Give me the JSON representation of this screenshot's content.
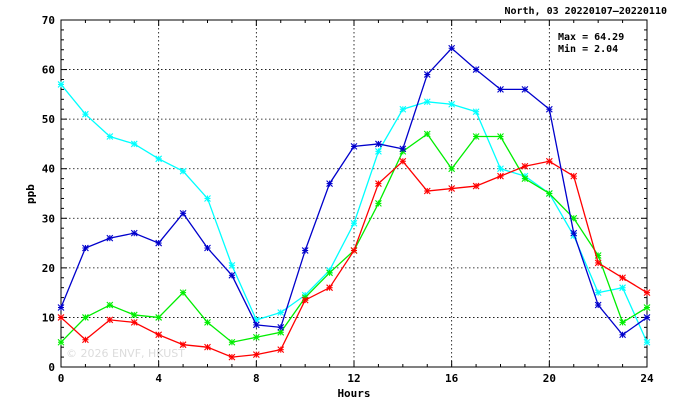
{
  "header": {
    "title": "North, 03 20220107–20220110"
  },
  "stats": {
    "max_line": "Max = 64.29",
    "min_line": "Min =  2.04"
  },
  "watermark": "© 2026  ENVF, HKUST",
  "chart_data": {
    "type": "line",
    "title": "North, 03 20220107–20220110",
    "xlabel": "Hours",
    "ylabel": "ppb",
    "xlim": [
      0,
      24
    ],
    "ylim": [
      0,
      70
    ],
    "xticks": [
      0,
      4,
      8,
      12,
      16,
      20,
      24
    ],
    "yticks": [
      0,
      10,
      20,
      30,
      40,
      50,
      60,
      70
    ],
    "grid": true,
    "x": [
      0,
      1,
      2,
      3,
      4,
      5,
      6,
      7,
      8,
      9,
      10,
      11,
      12,
      13,
      14,
      15,
      16,
      17,
      18,
      19,
      20,
      21,
      22,
      23,
      24
    ],
    "series": [
      {
        "color": "#0000cc",
        "values": [
          12,
          24,
          26,
          27,
          25,
          31,
          24,
          18.5,
          8.5,
          8,
          23.5,
          37,
          44.5,
          45,
          44,
          59,
          64.3,
          60,
          56,
          56,
          52,
          27,
          12.5,
          6.5,
          10
        ]
      },
      {
        "color": "#ff0000",
        "values": [
          10,
          5.5,
          9.5,
          9,
          6.5,
          4.5,
          4,
          2,
          2.5,
          3.5,
          13.5,
          16,
          23.5,
          37,
          41.5,
          35.5,
          36,
          36.5,
          38.5,
          40.5,
          41.5,
          38.5,
          21,
          18,
          15
        ]
      },
      {
        "color": "#00ee00",
        "values": [
          5,
          10,
          12.5,
          10.5,
          10,
          15,
          9,
          5,
          6,
          7,
          14,
          19,
          23.5,
          33,
          43.5,
          47,
          40,
          46.5,
          46.5,
          38,
          35,
          30,
          22.5,
          9,
          12
        ]
      },
      {
        "color": "#00ffff",
        "values": [
          57,
          51,
          46.5,
          45,
          42,
          39.5,
          34,
          20.5,
          9.5,
          11,
          14.5,
          19.5,
          29,
          43.5,
          52,
          53.5,
          53,
          51.5,
          40,
          38.5,
          35,
          26.5,
          15,
          16,
          5
        ]
      }
    ]
  }
}
